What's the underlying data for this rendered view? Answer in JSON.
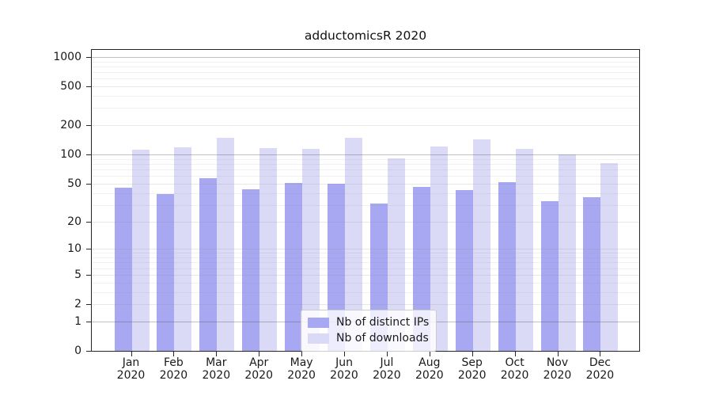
{
  "title": "adductomicsR 2020",
  "legend": {
    "items": [
      {
        "label": "Nb of distinct IPs",
        "color": "#a7a7f2"
      },
      {
        "label": "Nb of downloads",
        "color": "#dadaf7"
      }
    ]
  },
  "chart_data": {
    "type": "bar",
    "title": "adductomicsR 2020",
    "xlabel": "",
    "ylabel": "",
    "yscale": "log1p",
    "grid": true,
    "legend_position": "lower-center",
    "categories": [
      "Jan 2020",
      "Feb 2020",
      "Mar 2020",
      "Apr 2020",
      "May 2020",
      "Jun 2020",
      "Jul 2020",
      "Aug 2020",
      "Sep 2020",
      "Oct 2020",
      "Nov 2020",
      "Dec 2020"
    ],
    "series": [
      {
        "name": "Nb of distinct IPs",
        "color": "#a7a7f2",
        "values": [
          45,
          39,
          57,
          44,
          51,
          50,
          31,
          46,
          43,
          52,
          33,
          36
        ]
      },
      {
        "name": "Nb of downloads",
        "color": "#dadaf7",
        "values": [
          112,
          118,
          150,
          116,
          115,
          150,
          91,
          120,
          142,
          115,
          100,
          81
        ]
      }
    ],
    "yticks": [
      0,
      1,
      2,
      5,
      10,
      20,
      50,
      100,
      200,
      500,
      1000
    ],
    "emphasized_gridlines": [
      1,
      100,
      1000
    ],
    "ylim": [
      0,
      1180
    ]
  },
  "colors": {
    "background": "#ffffff",
    "spine": "#262626",
    "tick_text": "#1a1a1a",
    "grid_emphasized": "rgba(80,80,80,0.35)",
    "grid_labeled": "rgba(140,140,140,0.20)",
    "grid_minor": "rgba(150,150,150,0.13)",
    "legend_border": "#cccccc",
    "legend_bg": "rgba(255,255,255,0.8)"
  }
}
